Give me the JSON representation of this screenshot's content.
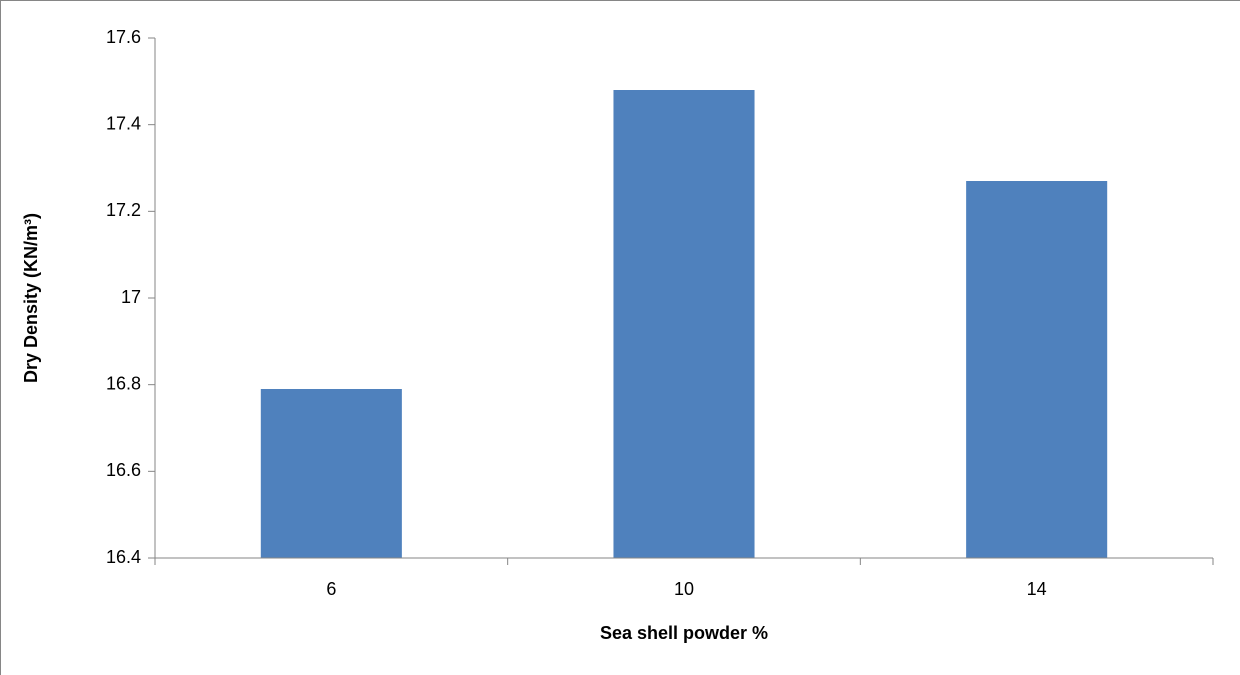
{
  "chart_data": {
    "type": "bar",
    "x_label": "Sea shell powder %",
    "y_label": "Dry Density (KN/m³)",
    "categories": [
      "6",
      "10",
      "14"
    ],
    "values": [
      16.79,
      17.48,
      17.27
    ],
    "color": "#4f81bd",
    "ylim": [
      16.4,
      17.6
    ],
    "yticks": [
      16.4,
      16.6,
      16.8,
      17,
      17.2,
      17.4,
      17.6
    ],
    "grid": false
  }
}
